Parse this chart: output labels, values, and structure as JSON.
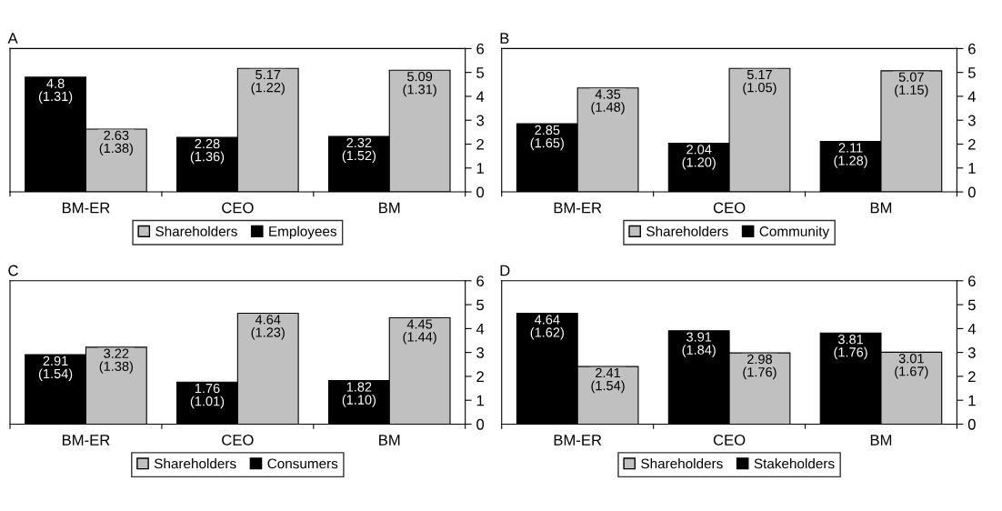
{
  "chart_data": [
    {
      "type": "bar",
      "title": "A",
      "categories": [
        "BM-ER",
        "CEO",
        "BM"
      ],
      "ylim": [
        0,
        6
      ],
      "yticks": [
        0,
        1,
        2,
        3,
        4,
        5,
        6
      ],
      "legend": "bottom",
      "grid": false,
      "series": [
        {
          "name": "Employees",
          "color": "#000000",
          "values": [
            4.8,
            2.28,
            2.32
          ],
          "value_labels": [
            "4.8\n(1.31)",
            "2.28\n(1.36)",
            "2.32\n(1.52)"
          ]
        },
        {
          "name": "Shareholders",
          "color": "#c0c0c0",
          "values": [
            2.63,
            5.17,
            5.09
          ],
          "value_labels": [
            "2.63\n(1.38)",
            "5.17\n(1.22)",
            "5.09\n(1.31)"
          ]
        }
      ]
    },
    {
      "type": "bar",
      "title": "B",
      "categories": [
        "BM-ER",
        "CEO",
        "BM"
      ],
      "ylim": [
        0,
        6
      ],
      "yticks": [
        0,
        1,
        2,
        3,
        4,
        5,
        6
      ],
      "legend": "bottom",
      "grid": false,
      "series": [
        {
          "name": "Community",
          "color": "#000000",
          "values": [
            2.85,
            2.04,
            2.11
          ],
          "value_labels": [
            "2.85\n(1.65)",
            "2.04\n(1.20)",
            "2.11\n(1.28)"
          ]
        },
        {
          "name": "Shareholders",
          "color": "#c0c0c0",
          "values": [
            4.35,
            5.17,
            5.07
          ],
          "value_labels": [
            "4.35\n(1.48)",
            "5.17\n(1.05)",
            "5.07\n(1.15)"
          ]
        }
      ]
    },
    {
      "type": "bar",
      "title": "C",
      "categories": [
        "BM-ER",
        "CEO",
        "BM"
      ],
      "ylim": [
        0,
        6
      ],
      "yticks": [
        0,
        1,
        2,
        3,
        4,
        5,
        6
      ],
      "legend": "bottom",
      "grid": false,
      "series": [
        {
          "name": "Consumers",
          "color": "#000000",
          "values": [
            2.91,
            1.76,
            1.82
          ],
          "value_labels": [
            "2.91\n(1.54)",
            "1.76\n(1.01)",
            "1.82\n(1.10)"
          ]
        },
        {
          "name": "Shareholders",
          "color": "#c0c0c0",
          "values": [
            3.22,
            4.64,
            4.45
          ],
          "value_labels": [
            "3.22\n(1.38)",
            "4.64\n(1.23)",
            "4.45\n(1.44)"
          ]
        }
      ]
    },
    {
      "type": "bar",
      "title": "D",
      "categories": [
        "BM-ER",
        "CEO",
        "BM"
      ],
      "ylim": [
        0,
        6
      ],
      "yticks": [
        0,
        1,
        2,
        3,
        4,
        5,
        6
      ],
      "legend": "bottom",
      "grid": false,
      "series": [
        {
          "name": "Stakeholders",
          "color": "#000000",
          "values": [
            4.64,
            3.91,
            3.81
          ],
          "value_labels": [
            "4.64\n(1.62)",
            "3.91\n(1.84)",
            "3.81\n(1.76)"
          ]
        },
        {
          "name": "Shareholders",
          "color": "#c0c0c0",
          "values": [
            2.41,
            2.98,
            3.01
          ],
          "value_labels": [
            "2.41\n(1.54)",
            "2.98\n(1.76)",
            "3.01\n(1.67)"
          ]
        }
      ]
    }
  ]
}
